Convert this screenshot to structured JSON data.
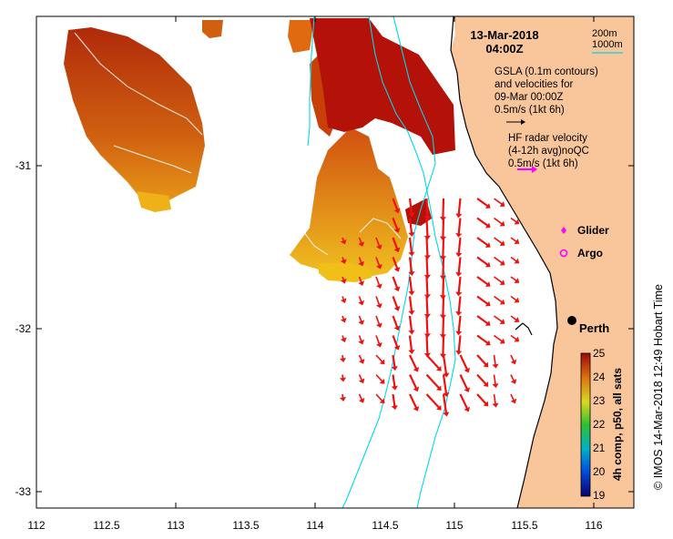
{
  "map": {
    "date": "13-Mar-2018",
    "time": "04:00Z",
    "legend": {
      "bathy_200": "200m",
      "bathy_1000": "1000m",
      "gsla_lines": [
        "GSLA (0.1m contours)",
        "and velocities for",
        "09-Mar 00:00Z",
        "0.5m/s (1kt 6h)"
      ],
      "hf_lines": [
        "HF radar velocity",
        "(4-12h avg)noQC",
        "0.5m/s (1kt 6h)"
      ],
      "glider": "Glider",
      "argo": "Argo"
    },
    "city": "Perth",
    "colorbar": {
      "label": "4h comp, p50, all sats",
      "ticks": [
        "25",
        "24",
        "23",
        "22",
        "21",
        "20",
        "19"
      ]
    },
    "credit": "© IMOS 14-Mar-2018 12:49 Hobart Time",
    "x_ticks": [
      "112",
      "112.5",
      "113",
      "113.5",
      "114",
      "114.5",
      "115",
      "115.5",
      "116"
    ],
    "y_ticks": [
      "-31",
      "-32",
      "-33"
    ],
    "colors": {
      "land": "#f9c59a",
      "bathy_line": "#00d8e8",
      "arrow": "#ee1111",
      "hf_arrow": "#ff00ff",
      "sst_warm": "#b01808",
      "sst_mid": "#e07810",
      "sst_cool": "#f0c018"
    }
  }
}
